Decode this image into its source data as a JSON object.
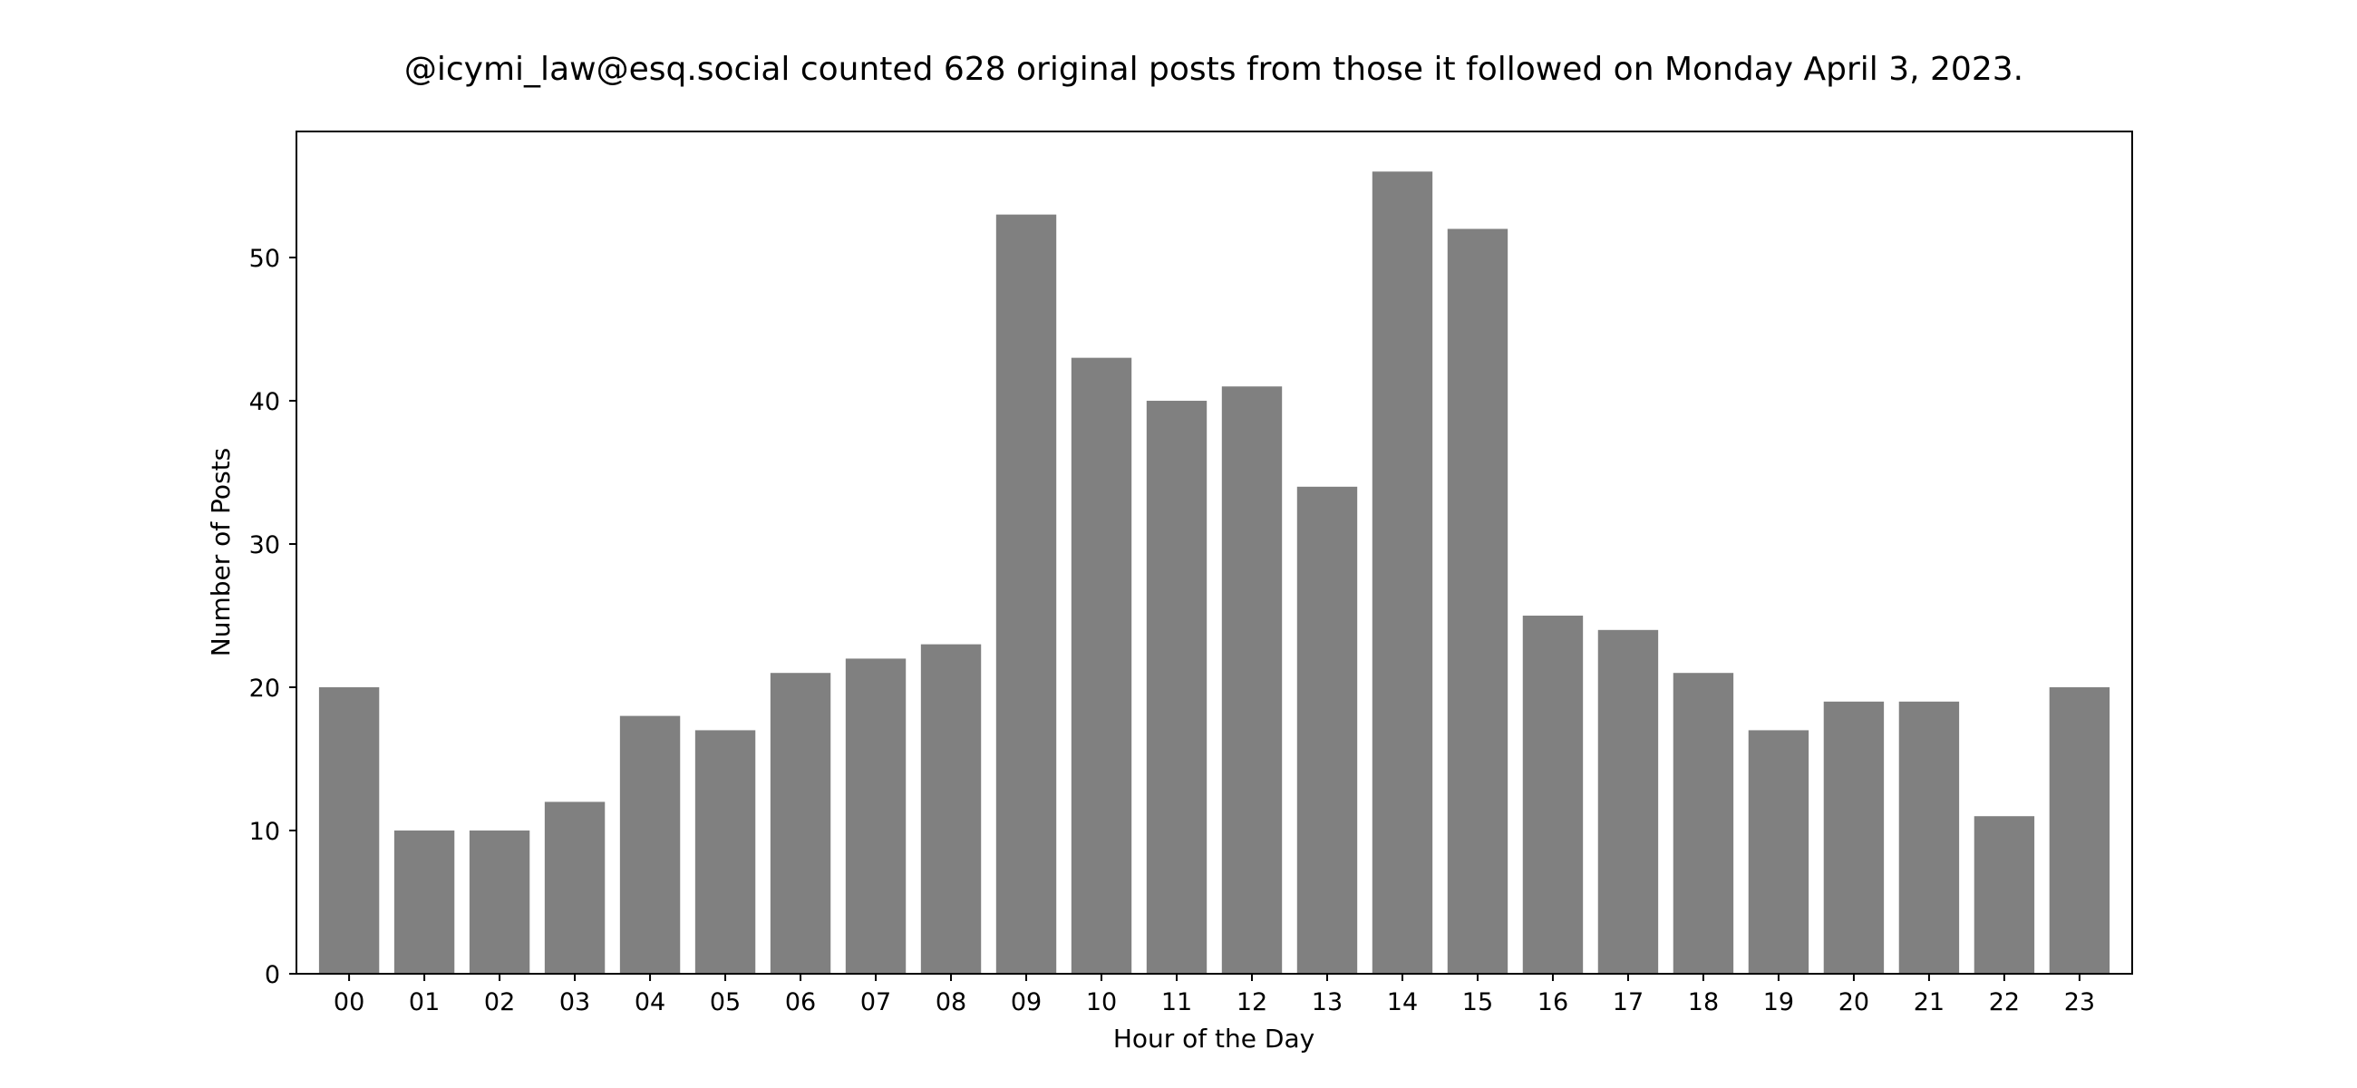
{
  "chart_data": {
    "type": "bar",
    "title": "@icymi_law@esq.social counted 628 original posts from those it followed on Monday April 3, 2023.",
    "xlabel": "Hour of the Day",
    "ylabel": "Number of Posts",
    "categories": [
      "00",
      "01",
      "02",
      "03",
      "04",
      "05",
      "06",
      "07",
      "08",
      "09",
      "10",
      "11",
      "12",
      "13",
      "14",
      "15",
      "16",
      "17",
      "18",
      "19",
      "20",
      "21",
      "22",
      "23"
    ],
    "values": [
      20,
      10,
      10,
      12,
      18,
      17,
      21,
      22,
      23,
      53,
      43,
      40,
      41,
      34,
      56,
      52,
      25,
      24,
      21,
      17,
      19,
      19,
      11,
      20
    ],
    "ylim": [
      0,
      58.8
    ],
    "yticks": [
      0,
      10,
      20,
      30,
      40,
      50
    ],
    "bar_color": "#808080",
    "grid": false,
    "legend": "none"
  }
}
